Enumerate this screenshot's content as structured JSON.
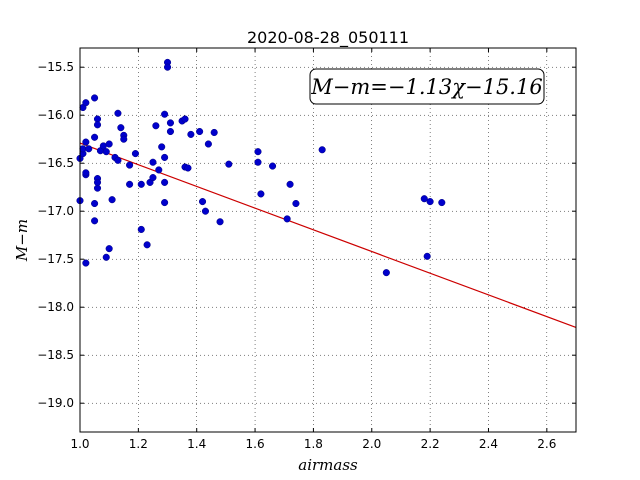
{
  "chart_data": {
    "type": "scatter",
    "title": "2020-08-28_050111",
    "xlabel": "airmass",
    "ylabel": "M−m",
    "annotation": "M−m=−1.13χ−15.16",
    "xlim": [
      1.0,
      2.7
    ],
    "ylim": [
      -19.3,
      -15.3
    ],
    "y_inverted": true,
    "grid": true,
    "xticks": [
      1.0,
      1.2,
      1.4,
      1.6,
      1.8,
      2.0,
      2.2,
      2.4,
      2.6
    ],
    "xtick_labels": [
      "1.0",
      "1.2",
      "1.4",
      "1.6",
      "1.8",
      "2.0",
      "2.2",
      "2.4",
      "2.6"
    ],
    "yticks": [
      -15.5,
      -16.0,
      -16.5,
      -17.0,
      -17.5,
      -18.0,
      -18.5,
      -19.0
    ],
    "ytick_labels": [
      "−15.5",
      "−16.0",
      "−16.5",
      "−17.0",
      "−17.5",
      "−18.0",
      "−18.5",
      "−19.0"
    ],
    "points_color": "#0000cc",
    "fit_color": "#cc0000",
    "fit": {
      "slope": -1.13,
      "intercept": -15.16
    },
    "points": [
      [
        1.0,
        -16.89
      ],
      [
        1.0,
        -16.45
      ],
      [
        1.01,
        -16.4
      ],
      [
        1.01,
        -16.35
      ],
      [
        1.01,
        -15.92
      ],
      [
        1.02,
        -15.87
      ],
      [
        1.02,
        -16.62
      ],
      [
        1.02,
        -16.6
      ],
      [
        1.02,
        -16.28
      ],
      [
        1.02,
        -17.54
      ],
      [
        1.03,
        -16.35
      ],
      [
        1.05,
        -15.82
      ],
      [
        1.05,
        -16.23
      ],
      [
        1.05,
        -16.92
      ],
      [
        1.05,
        -17.1
      ],
      [
        1.06,
        -16.04
      ],
      [
        1.06,
        -16.1
      ],
      [
        1.06,
        -16.66
      ],
      [
        1.06,
        -16.76
      ],
      [
        1.06,
        -16.7
      ],
      [
        1.07,
        -16.37
      ],
      [
        1.08,
        -16.32
      ],
      [
        1.09,
        -16.38
      ],
      [
        1.1,
        -16.3
      ],
      [
        1.09,
        -17.48
      ],
      [
        1.1,
        -17.39
      ],
      [
        1.11,
        -16.88
      ],
      [
        1.12,
        -16.44
      ],
      [
        1.13,
        -16.47
      ],
      [
        1.13,
        -15.98
      ],
      [
        1.14,
        -16.13
      ],
      [
        1.15,
        -16.21
      ],
      [
        1.15,
        -16.25
      ],
      [
        1.17,
        -16.52
      ],
      [
        1.17,
        -16.72
      ],
      [
        1.19,
        -16.4
      ],
      [
        1.21,
        -16.72
      ],
      [
        1.21,
        -17.19
      ],
      [
        1.23,
        -17.35
      ],
      [
        1.24,
        -16.7
      ],
      [
        1.25,
        -16.65
      ],
      [
        1.25,
        -16.49
      ],
      [
        1.26,
        -16.11
      ],
      [
        1.27,
        -16.57
      ],
      [
        1.28,
        -16.33
      ],
      [
        1.29,
        -16.44
      ],
      [
        1.29,
        -16.91
      ],
      [
        1.29,
        -16.7
      ],
      [
        1.29,
        -15.99
      ],
      [
        1.3,
        -15.45
      ],
      [
        1.3,
        -15.5
      ],
      [
        1.31,
        -16.17
      ],
      [
        1.31,
        -16.08
      ],
      [
        1.35,
        -16.06
      ],
      [
        1.36,
        -16.04
      ],
      [
        1.36,
        -16.54
      ],
      [
        1.37,
        -16.55
      ],
      [
        1.38,
        -16.2
      ],
      [
        1.41,
        -16.17
      ],
      [
        1.42,
        -16.9
      ],
      [
        1.43,
        -17.0
      ],
      [
        1.44,
        -16.3
      ],
      [
        1.46,
        -16.18
      ],
      [
        1.48,
        -17.11
      ],
      [
        1.51,
        -16.51
      ],
      [
        1.61,
        -16.38
      ],
      [
        1.61,
        -16.49
      ],
      [
        1.62,
        -16.82
      ],
      [
        1.66,
        -16.53
      ],
      [
        1.71,
        -17.08
      ],
      [
        1.72,
        -16.72
      ],
      [
        1.74,
        -16.92
      ],
      [
        1.83,
        -16.36
      ],
      [
        2.05,
        -17.64
      ],
      [
        2.18,
        -16.87
      ],
      [
        2.19,
        -17.47
      ],
      [
        2.2,
        -16.9
      ],
      [
        2.24,
        -16.91
      ]
    ]
  }
}
